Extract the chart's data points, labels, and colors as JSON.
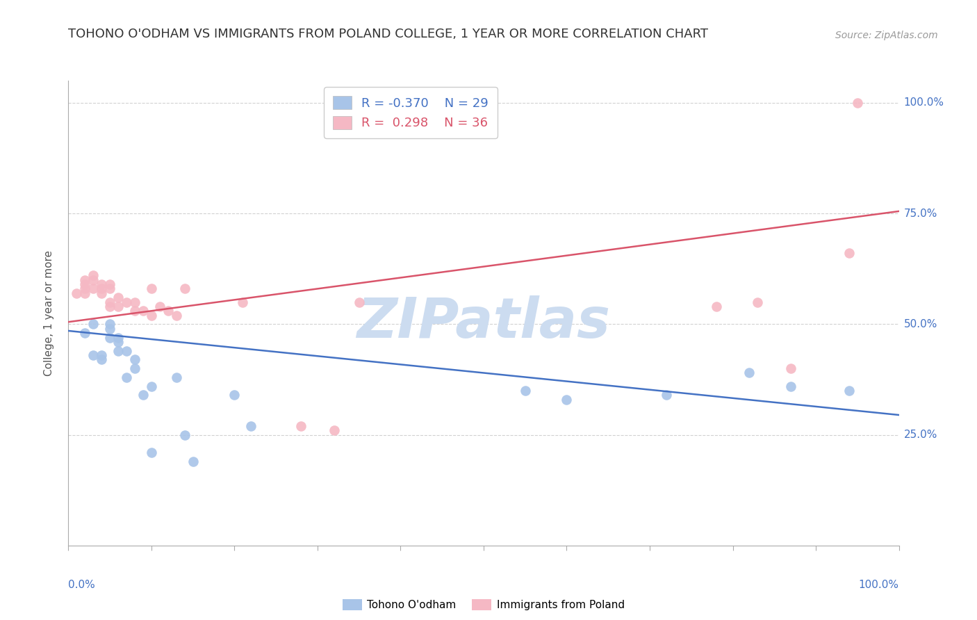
{
  "title": "TOHONO O'ODHAM VS IMMIGRANTS FROM POLAND COLLEGE, 1 YEAR OR MORE CORRELATION CHART",
  "source": "Source: ZipAtlas.com",
  "ylabel": "College, 1 year or more",
  "legend_blue_r": "-0.370",
  "legend_blue_n": "29",
  "legend_pink_r": "0.298",
  "legend_pink_n": "36",
  "legend_blue_label": "Tohono O'odham",
  "legend_pink_label": "Immigrants from Poland",
  "blue_color": "#a8c4e8",
  "pink_color": "#f5b8c4",
  "blue_line_color": "#4472c4",
  "pink_line_color": "#d9546a",
  "watermark_text": "ZIPatlas",
  "watermark_color": "#ccdcf0",
  "xlim": [
    0,
    1
  ],
  "ylim": [
    0,
    1.05
  ],
  "xticks": [
    0.0,
    0.1,
    0.2,
    0.3,
    0.4,
    0.5,
    0.6,
    0.7,
    0.8,
    0.9,
    1.0
  ],
  "yticks": [
    0.25,
    0.5,
    0.75,
    1.0
  ],
  "blue_x": [
    0.02,
    0.03,
    0.03,
    0.04,
    0.04,
    0.05,
    0.05,
    0.05,
    0.06,
    0.06,
    0.06,
    0.07,
    0.07,
    0.08,
    0.08,
    0.09,
    0.1,
    0.1,
    0.13,
    0.14,
    0.15,
    0.2,
    0.22,
    0.55,
    0.6,
    0.72,
    0.82,
    0.87,
    0.94
  ],
  "blue_y": [
    0.48,
    0.5,
    0.43,
    0.43,
    0.42,
    0.5,
    0.49,
    0.47,
    0.47,
    0.46,
    0.44,
    0.44,
    0.38,
    0.42,
    0.4,
    0.34,
    0.21,
    0.36,
    0.38,
    0.25,
    0.19,
    0.34,
    0.27,
    0.35,
    0.33,
    0.34,
    0.39,
    0.36,
    0.35
  ],
  "pink_x": [
    0.01,
    0.02,
    0.02,
    0.02,
    0.02,
    0.03,
    0.03,
    0.03,
    0.04,
    0.04,
    0.04,
    0.05,
    0.05,
    0.05,
    0.05,
    0.06,
    0.06,
    0.07,
    0.08,
    0.08,
    0.09,
    0.1,
    0.1,
    0.11,
    0.12,
    0.13,
    0.14,
    0.21,
    0.28,
    0.32,
    0.35,
    0.78,
    0.83,
    0.87,
    0.94,
    0.95
  ],
  "pink_y": [
    0.57,
    0.6,
    0.59,
    0.58,
    0.57,
    0.61,
    0.6,
    0.58,
    0.59,
    0.58,
    0.57,
    0.59,
    0.58,
    0.55,
    0.54,
    0.56,
    0.54,
    0.55,
    0.55,
    0.53,
    0.53,
    0.58,
    0.52,
    0.54,
    0.53,
    0.52,
    0.58,
    0.55,
    0.27,
    0.26,
    0.55,
    0.54,
    0.55,
    0.4,
    0.66,
    1.0
  ],
  "blue_trendline_x": [
    0.0,
    1.0
  ],
  "blue_trendline_y": [
    0.485,
    0.295
  ],
  "pink_trendline_x": [
    0.0,
    1.0
  ],
  "pink_trendline_y": [
    0.505,
    0.755
  ],
  "background_color": "#ffffff",
  "grid_color": "#cccccc",
  "title_color": "#333333",
  "title_fontsize": 13,
  "axis_label_fontsize": 11,
  "tick_fontsize": 11,
  "source_fontsize": 10
}
